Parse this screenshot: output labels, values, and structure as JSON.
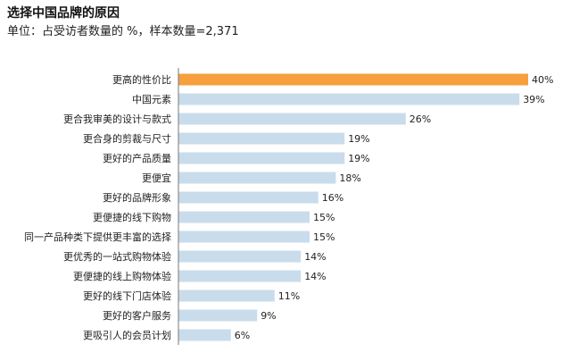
{
  "title": "选择中国品牌的原因",
  "subtitle": "单位：占受访者数量的 %，样本数量=2,371",
  "chart_data": {
    "type": "bar",
    "orientation": "horizontal",
    "categories": [
      "更高的性价比",
      "中国元素",
      "更合我审美的设计与款式",
      "更合身的剪裁与尺寸",
      "更好的产品质量",
      "更便宜",
      "更好的品牌形象",
      "更便捷的线下购物",
      "同一产品种类下提供更丰富的选择",
      "更优秀的一站式购物体验",
      "更便捷的线上购物体验",
      "更好的线下门店体验",
      "更好的客户服务",
      "更吸引人的会员计划"
    ],
    "values": [
      40,
      39,
      26,
      19,
      19,
      18,
      16,
      15,
      15,
      14,
      14,
      11,
      9,
      6
    ],
    "value_labels": [
      "40%",
      "39%",
      "26%",
      "19%",
      "19%",
      "18%",
      "16%",
      "15%",
      "15%",
      "14%",
      "14%",
      "11%",
      "9%",
      "6%"
    ],
    "xlim": [
      0,
      40
    ],
    "grid": false,
    "colors": {
      "highlight": "#F5A03C",
      "default": "#C9DCEC",
      "axis": "#777777"
    },
    "highlight_index": 0
  }
}
